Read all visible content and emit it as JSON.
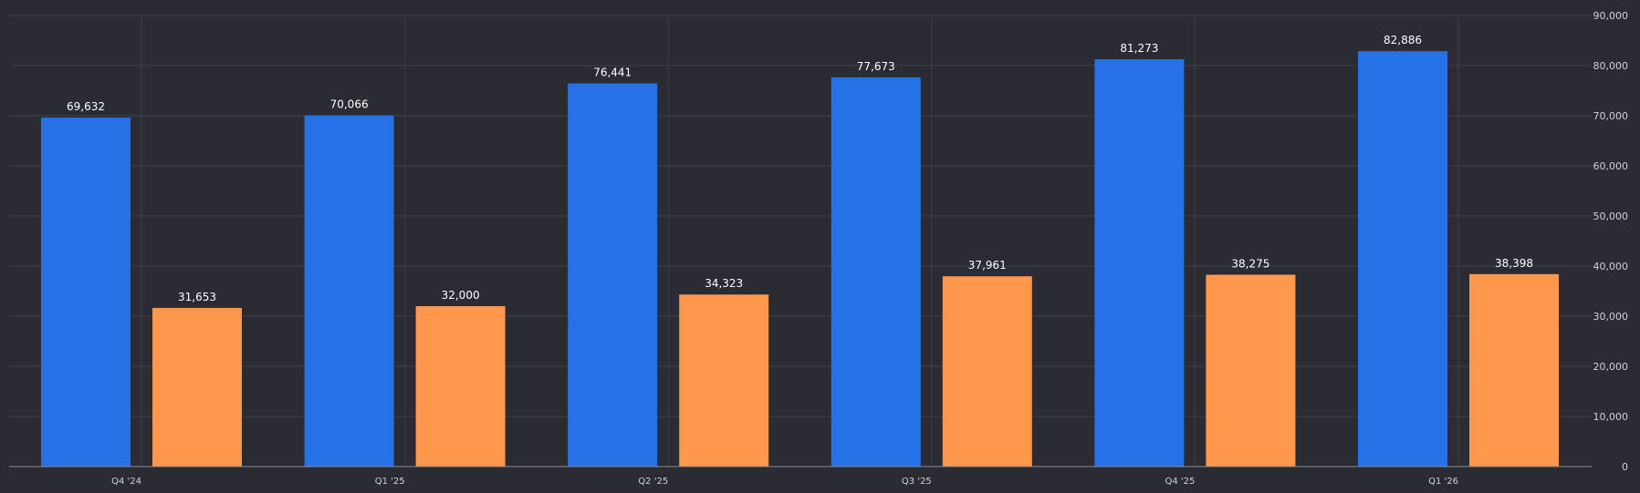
{
  "chart_data": {
    "type": "bar",
    "title": "",
    "xlabel": "",
    "ylabel": "",
    "categories": [
      "Q4 '24",
      "Q1 '25",
      "Q2 '25",
      "Q3 '25",
      "Q4 '25",
      "Q1 '26"
    ],
    "series": [
      {
        "color": "#2671e6",
        "values": [
          69632,
          70066,
          76441,
          77673,
          81273,
          82886
        ],
        "labels": [
          "69,632",
          "70,066",
          "76,441",
          "77,673",
          "81,273",
          "82,886"
        ]
      },
      {
        "color": "#ff974d",
        "values": [
          31653,
          32000,
          34323,
          37961,
          38275,
          38398
        ],
        "labels": [
          "31,653",
          "32,000",
          "34,323",
          "37,961",
          "38,275",
          "38,398"
        ]
      }
    ],
    "ylim": [
      0,
      90000
    ],
    "yticks": [
      0,
      10000,
      20000,
      30000,
      40000,
      50000,
      60000,
      70000,
      80000,
      90000
    ],
    "ytick_labels": [
      "0",
      "10,000",
      "20,000",
      "30,000",
      "40,000",
      "50,000",
      "60,000",
      "70,000",
      "80,000",
      "90,000"
    ],
    "y_axis_side": "right",
    "grid": true,
    "data_labels": true,
    "legend": "none"
  }
}
